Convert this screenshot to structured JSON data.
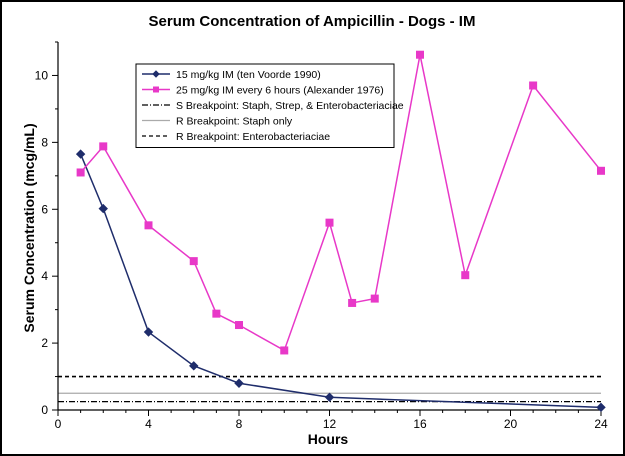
{
  "chart_data": {
    "type": "line",
    "title": "Serum Concentration  of Ampicillin  - Dogs - IM",
    "xlabel": "Hours",
    "ylabel": "Serum Concentration (mcg/mL)",
    "xlim": [
      0,
      24
    ],
    "ylim": [
      0,
      11
    ],
    "xticks": [
      0,
      4,
      8,
      12,
      16,
      20,
      24
    ],
    "yticks": [
      0,
      2,
      4,
      6,
      8,
      10
    ],
    "grid": false,
    "legend_position": "top-left inside plot",
    "series": [
      {
        "name": "15 mg/kg IM (ten Voorde 1990)",
        "color": "#1f2d6b",
        "marker": "diamond",
        "style": "solid",
        "x": [
          1,
          2,
          4,
          6,
          8,
          12,
          24
        ],
        "y": [
          7.65,
          6.02,
          2.33,
          1.32,
          0.8,
          0.38,
          0.08
        ]
      },
      {
        "name": "25 mg/kg IM every 6 hours (Alexander 1976)",
        "color": "#e838c8",
        "marker": "square",
        "style": "solid",
        "x": [
          1,
          2,
          4,
          6,
          7,
          8,
          10,
          12,
          13,
          14,
          16,
          18,
          21,
          24
        ],
        "y": [
          7.1,
          7.88,
          5.52,
          4.45,
          2.88,
          2.54,
          1.78,
          5.6,
          3.2,
          3.33,
          10.62,
          4.03,
          9.7,
          7.15
        ]
      }
    ],
    "reference_lines": [
      {
        "name": "S Breakpoint: Staph, Strep, & Enterobacteriaciae",
        "y": 0.25,
        "color": "#000000",
        "style": "dashdot"
      },
      {
        "name": "R Breakpoint: Staph only",
        "y": 0.5,
        "color": "#aaaaaa",
        "style": "solid"
      },
      {
        "name": "R Breakpoint: Enterobacteriaciae",
        "y": 1.0,
        "color": "#000000",
        "style": "dashed"
      }
    ]
  }
}
